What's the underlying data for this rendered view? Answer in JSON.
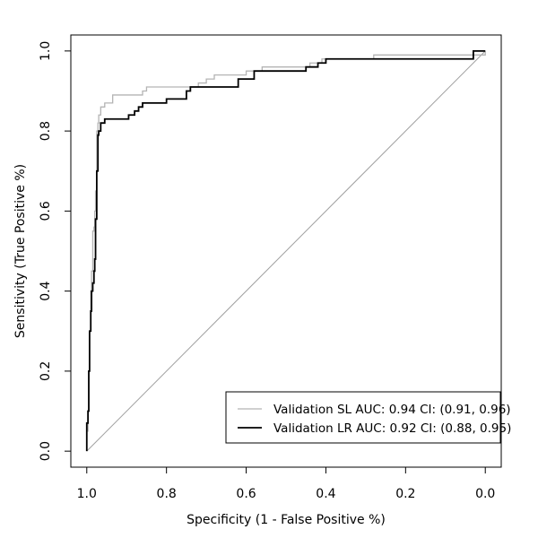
{
  "chart_data": {
    "type": "line",
    "title": "",
    "xlabel": "Specificity (1 - False Positive %)",
    "ylabel": "Sensitivity (True Positive %)",
    "xlim": [
      1.04,
      -0.04
    ],
    "ylim": [
      -0.04,
      1.04
    ],
    "x_axis_reversed": true,
    "xticks": [
      "1.0",
      "0.8",
      "0.6",
      "0.4",
      "0.2",
      "0.0"
    ],
    "yticks": [
      "0.0",
      "0.2",
      "0.4",
      "0.6",
      "0.8",
      "1.0"
    ],
    "grid": false,
    "legend_position": "bottom-right",
    "reference_line": {
      "x": [
        1.0,
        0.0
      ],
      "y": [
        0.0,
        1.0
      ],
      "color": "#a0a0a0"
    },
    "series": [
      {
        "name": "Validation SL AUC: 0.94 CI: (0.91, 0.96)",
        "color": "#b4b4b4",
        "x": [
          1.0,
          1.0,
          0.997,
          0.995,
          0.993,
          0.99,
          0.988,
          0.985,
          0.982,
          0.98,
          0.978,
          0.975,
          0.972,
          0.97,
          0.965,
          0.955,
          0.955,
          0.935,
          0.935,
          0.9,
          0.87,
          0.86,
          0.85,
          0.77,
          0.72,
          0.7,
          0.68,
          0.63,
          0.6,
          0.6,
          0.56,
          0.56,
          0.47,
          0.44,
          0.42,
          0.41,
          0.4,
          0.36,
          0.28,
          0.28,
          0.02,
          0.0
        ],
        "y": [
          0.0,
          0.05,
          0.1,
          0.2,
          0.3,
          0.4,
          0.45,
          0.55,
          0.56,
          0.6,
          0.65,
          0.8,
          0.82,
          0.84,
          0.86,
          0.86,
          0.87,
          0.87,
          0.89,
          0.89,
          0.89,
          0.9,
          0.91,
          0.91,
          0.92,
          0.93,
          0.94,
          0.94,
          0.94,
          0.95,
          0.95,
          0.96,
          0.96,
          0.97,
          0.97,
          0.98,
          0.98,
          0.98,
          0.98,
          0.99,
          0.99,
          1.0
        ]
      },
      {
        "name": "Validation LR AUC: 0.92 CI: (0.88, 0.95)",
        "color": "#000000",
        "x": [
          1.0,
          1.0,
          0.997,
          0.995,
          0.993,
          0.99,
          0.988,
          0.985,
          0.982,
          0.98,
          0.978,
          0.975,
          0.972,
          0.97,
          0.965,
          0.955,
          0.955,
          0.9,
          0.895,
          0.89,
          0.88,
          0.87,
          0.86,
          0.8,
          0.79,
          0.75,
          0.74,
          0.62,
          0.62,
          0.58,
          0.58,
          0.45,
          0.44,
          0.42,
          0.41,
          0.4,
          0.36,
          0.03,
          0.03,
          0.0
        ],
        "y": [
          0.0,
          0.07,
          0.1,
          0.2,
          0.3,
          0.35,
          0.4,
          0.42,
          0.45,
          0.48,
          0.58,
          0.7,
          0.79,
          0.8,
          0.82,
          0.82,
          0.83,
          0.83,
          0.84,
          0.84,
          0.85,
          0.86,
          0.87,
          0.88,
          0.88,
          0.9,
          0.91,
          0.92,
          0.93,
          0.94,
          0.95,
          0.96,
          0.96,
          0.97,
          0.97,
          0.98,
          0.98,
          0.98,
          1.0,
          1.0
        ]
      }
    ]
  }
}
